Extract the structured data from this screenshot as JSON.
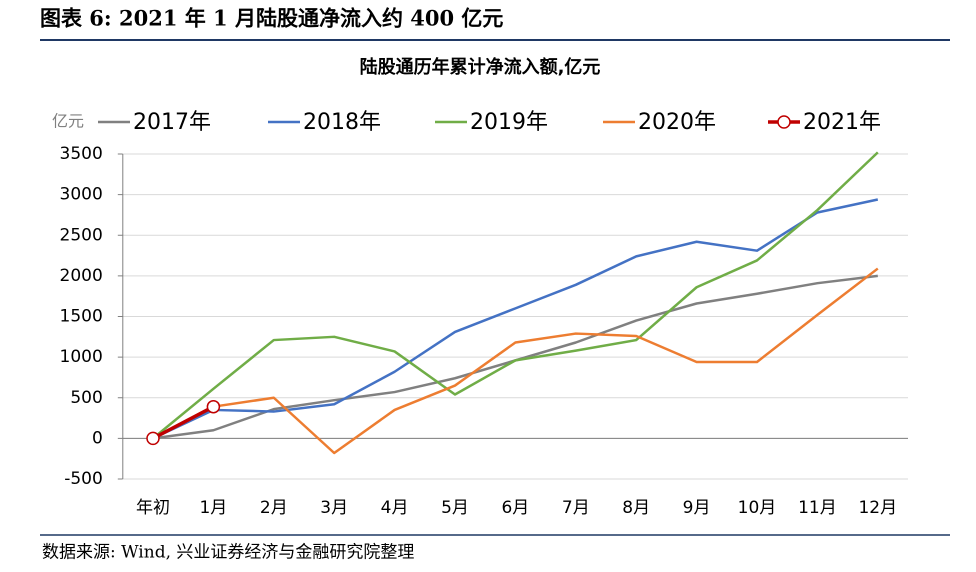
{
  "figure_title": "图表 6:  2021 年 1 月陆股通净流入约 400 亿元",
  "source": "数据来源:  Wind,  兴业证券经济与金融研究院整理",
  "chart_data": {
    "type": "line",
    "title": "陆股通历年累计净流入额,亿元",
    "y_label": "亿元",
    "categories": [
      "年初",
      "1月",
      "2月",
      "3月",
      "4月",
      "5月",
      "6月",
      "7月",
      "8月",
      "9月",
      "10月",
      "11月",
      "12月"
    ],
    "series": [
      {
        "name": "2017年",
        "color": "#808080",
        "values": [
          0,
          100,
          360,
          470,
          570,
          740,
          960,
          1180,
          1450,
          1660,
          1780,
          1910,
          2000
        ]
      },
      {
        "name": "2018年",
        "color": "#4472c4",
        "values": [
          0,
          350,
          330,
          420,
          820,
          1310,
          1600,
          1890,
          2240,
          2420,
          2310,
          2780,
          2940
        ]
      },
      {
        "name": "2019年",
        "color": "#70ad47",
        "values": [
          0,
          610,
          1210,
          1250,
          1070,
          540,
          960,
          1080,
          1210,
          1860,
          2190,
          2810,
          3520
        ]
      },
      {
        "name": "2020年",
        "color": "#ed7d31",
        "values": [
          0,
          390,
          500,
          -180,
          350,
          650,
          1180,
          1290,
          1260,
          940,
          940,
          1520,
          2090
        ]
      },
      {
        "name": "2021年",
        "color": "#c00000",
        "marker": "circle",
        "values": [
          0,
          390,
          null,
          null,
          null,
          null,
          null,
          null,
          null,
          null,
          null,
          null,
          null
        ]
      }
    ],
    "ylim": [
      -500,
      3500
    ],
    "yticks": [
      -500,
      0,
      500,
      1000,
      1500,
      2000,
      2500,
      3000,
      3500
    ],
    "grid": true,
    "legend": "top"
  }
}
